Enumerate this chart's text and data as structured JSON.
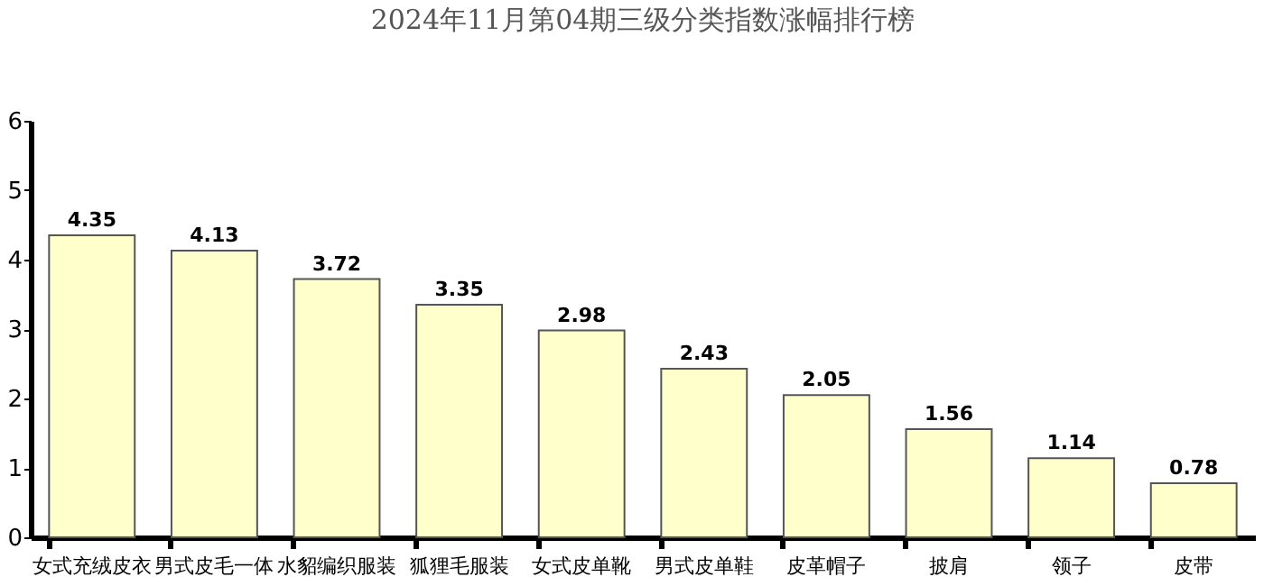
{
  "chart_data": {
    "type": "bar",
    "title": "2024年11月第04期三级分类指数涨幅排行榜",
    "categories": [
      "女式充绒皮衣",
      "男式皮毛一体",
      "水貂编织服装",
      "狐狸毛服装",
      "女式皮单靴",
      "男式皮单鞋",
      "皮革帽子",
      "披肩",
      "领子",
      "皮带"
    ],
    "values": [
      4.35,
      4.13,
      3.72,
      3.35,
      2.98,
      2.43,
      2.05,
      1.56,
      1.14,
      0.78
    ],
    "color": "#ffffcc",
    "ylim": [
      0,
      6
    ],
    "yticks": [
      0,
      1,
      2,
      3,
      4,
      5,
      6
    ],
    "grid": false,
    "data_labels": true
  }
}
